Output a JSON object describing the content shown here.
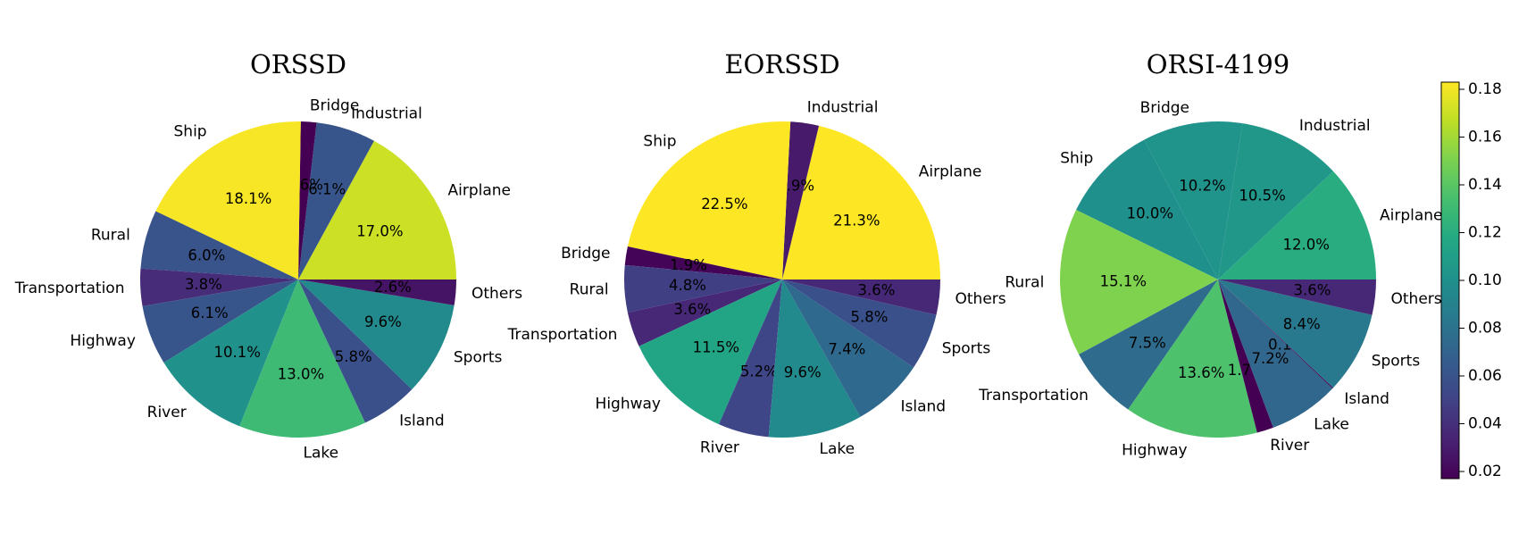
{
  "chart_data": {
    "type": "pie",
    "colorbar": {
      "label": "",
      "range": [
        0.017,
        0.183
      ],
      "ticks": [
        "0.02",
        "0.04",
        "0.06",
        "0.08",
        "0.10",
        "0.12",
        "0.14",
        "0.16",
        "0.18"
      ],
      "colormap": "viridis"
    },
    "charts": [
      {
        "title": "ORSSD",
        "slices": [
          {
            "label": "Airplane",
            "pct": "17.0%",
            "value": 17.0
          },
          {
            "label": "Industrial",
            "pct": "6.1%",
            "value": 6.1
          },
          {
            "label": "Bridge",
            "pct": "1.6%",
            "value": 1.6
          },
          {
            "label": "Ship",
            "pct": "18.1%",
            "value": 18.1
          },
          {
            "label": "Rural",
            "pct": "6.0%",
            "value": 6.0
          },
          {
            "label": "Transportation",
            "pct": "3.8%",
            "value": 3.8
          },
          {
            "label": "Highway",
            "pct": "6.1%",
            "value": 6.1
          },
          {
            "label": "River",
            "pct": "10.1%",
            "value": 10.1
          },
          {
            "label": "Lake",
            "pct": "13.0%",
            "value": 13.0
          },
          {
            "label": "Island",
            "pct": "5.8%",
            "value": 5.8
          },
          {
            "label": "Sports",
            "pct": "9.6%",
            "value": 9.6
          },
          {
            "label": "Others",
            "pct": "2.6%",
            "value": 2.6
          }
        ]
      },
      {
        "title": "EORSSD",
        "slices": [
          {
            "label": "Airplane",
            "pct": "21.3%",
            "value": 21.3
          },
          {
            "label": "Industrial",
            "pct": "2.9%",
            "value": 2.9
          },
          {
            "label": "Ship",
            "pct": "22.5%",
            "value": 22.5
          },
          {
            "label": "Bridge",
            "pct": "1.9%",
            "value": 1.9
          },
          {
            "label": "Rural",
            "pct": "4.8%",
            "value": 4.8
          },
          {
            "label": "Transportation",
            "pct": "3.6%",
            "value": 3.6
          },
          {
            "label": "Highway",
            "pct": "11.5%",
            "value": 11.5
          },
          {
            "label": "River",
            "pct": "5.2%",
            "value": 5.2
          },
          {
            "label": "Lake",
            "pct": "9.6%",
            "value": 9.6
          },
          {
            "label": "Island",
            "pct": "7.4%",
            "value": 7.4
          },
          {
            "label": "Sports",
            "pct": "5.8%",
            "value": 5.8
          },
          {
            "label": "Others",
            "pct": "3.6%",
            "value": 3.6
          }
        ]
      },
      {
        "title": "ORSI-4199",
        "slices": [
          {
            "label": "Airplane",
            "pct": "12.0%",
            "value": 12.0
          },
          {
            "label": "Industrial",
            "pct": "10.5%",
            "value": 10.5
          },
          {
            "label": "Bridge",
            "pct": "10.2%",
            "value": 10.2
          },
          {
            "label": "Ship",
            "pct": "10.0%",
            "value": 10.0
          },
          {
            "label": "Rural",
            "pct": "15.1%",
            "value": 15.1
          },
          {
            "label": "Transportation",
            "pct": "7.5%",
            "value": 7.5
          },
          {
            "label": "Highway",
            "pct": "13.6%",
            "value": 13.6
          },
          {
            "label": "River",
            "pct": "1.7%",
            "value": 1.7
          },
          {
            "label": "Lake",
            "pct": "7.2%",
            "value": 7.2
          },
          {
            "label": "Island",
            "pct": "0.1%",
            "value": 0.1
          },
          {
            "label": "Sports",
            "pct": "8.4%",
            "value": 8.4
          },
          {
            "label": "Others",
            "pct": "3.6%",
            "value": 3.6
          }
        ]
      }
    ]
  }
}
